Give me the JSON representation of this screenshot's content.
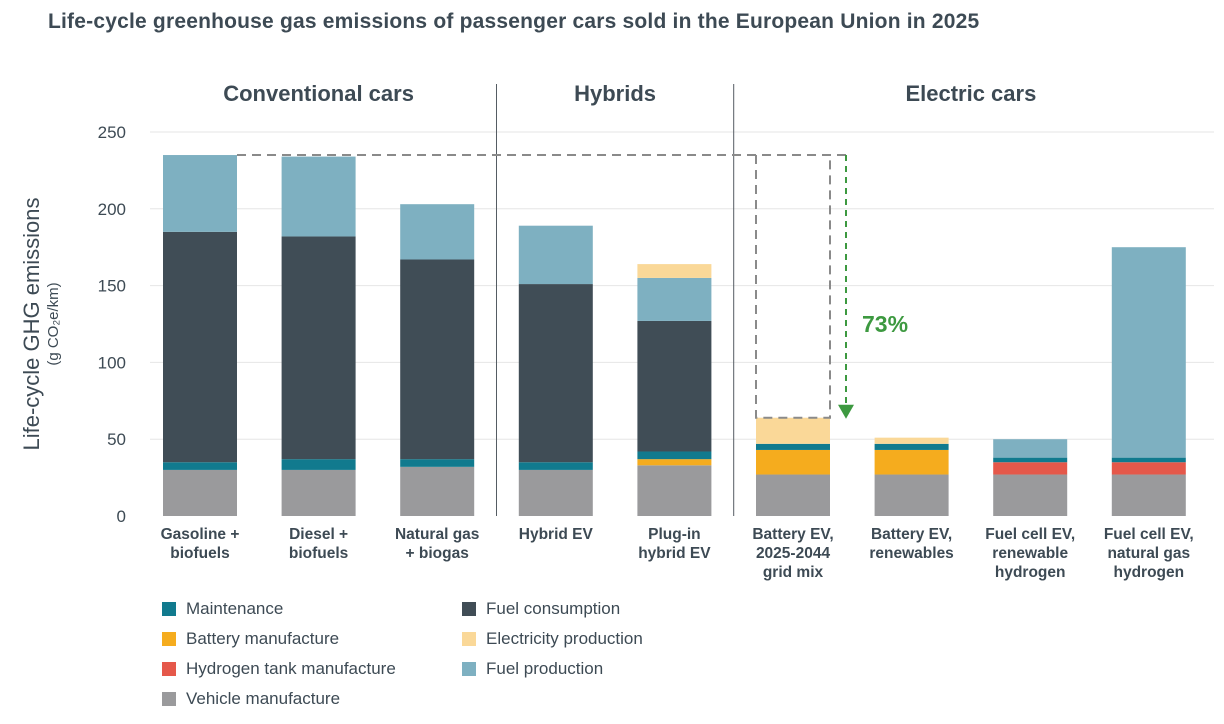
{
  "chart_data": {
    "type": "bar",
    "stacked": true,
    "title": "Life-cycle greenhouse gas emissions of passenger cars sold in the European Union in 2025",
    "ylabel": "Life-cycle GHG emissions",
    "ylabel_units": "(g CO₂e/km)",
    "ylim": [
      0,
      250
    ],
    "yticks": [
      0,
      50,
      100,
      150,
      200,
      250
    ],
    "grid": true,
    "groups": [
      {
        "label": "Conventional cars",
        "from": 0,
        "to": 2
      },
      {
        "label": "Hybrids",
        "from": 3,
        "to": 4
      },
      {
        "label": "Electric cars",
        "from": 5,
        "to": 8
      }
    ],
    "categories": [
      [
        "Gasoline +",
        "biofuels"
      ],
      [
        "Diesel +",
        "biofuels"
      ],
      [
        "Natural gas",
        "+ biogas"
      ],
      [
        "Hybrid EV"
      ],
      [
        "Plug-in",
        "hybrid EV"
      ],
      [
        "Battery EV,",
        "2025-2044",
        "grid mix"
      ],
      [
        "Battery EV,",
        "renewables"
      ],
      [
        "Fuel cell EV,",
        "renewable",
        "hydrogen"
      ],
      [
        "Fuel cell EV,",
        "natural gas",
        "hydrogen"
      ]
    ],
    "series": [
      {
        "name": "Vehicle manufacture",
        "color": "#9a9a9c",
        "values": [
          30,
          30,
          32,
          30,
          33,
          27,
          27,
          27,
          27
        ]
      },
      {
        "name": "Battery manufacture",
        "color": "#f5ac1e",
        "values": [
          0,
          0,
          0,
          0,
          4,
          16,
          16,
          0,
          0
        ]
      },
      {
        "name": "Hydrogen tank manufacture",
        "color": "#e5584a",
        "values": [
          0,
          0,
          0,
          0,
          0,
          0,
          0,
          8,
          8
        ]
      },
      {
        "name": "Maintenance",
        "color": "#117a8e",
        "values": [
          5,
          7,
          5,
          5,
          5,
          4,
          4,
          3,
          3
        ]
      },
      {
        "name": "Fuel consumption",
        "color": "#404d56",
        "values": [
          150,
          145,
          130,
          116,
          85,
          0,
          0,
          0,
          0
        ]
      },
      {
        "name": "Fuel production",
        "color": "#7eb0c1",
        "values": [
          50,
          52,
          36,
          38,
          28,
          0,
          0,
          12,
          137
        ]
      },
      {
        "name": "Electricity production",
        "color": "#fad898",
        "values": [
          0,
          0,
          0,
          0,
          9,
          17,
          4,
          0,
          0
        ]
      }
    ],
    "annotation": {
      "text": "73%",
      "color": "#3d9940",
      "from_value": 235,
      "to_value": 64,
      "color_reference": "#8a8a8a"
    },
    "legend": {
      "position": "bottom-left",
      "order": [
        "Maintenance",
        "Fuel consumption",
        "Battery manufacture",
        "Electricity production",
        "Hydrogen tank manufacture",
        "Fuel production",
        "Vehicle manufacture"
      ]
    }
  }
}
